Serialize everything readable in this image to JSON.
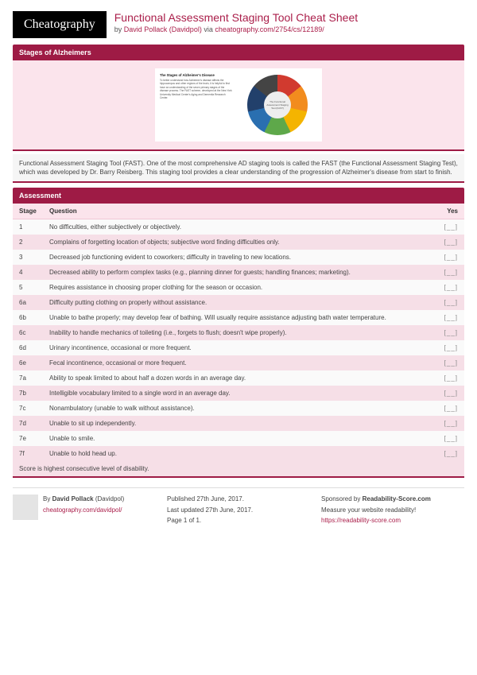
{
  "header": {
    "logo": "Cheatography",
    "title": "Functional Assessment Staging Tool Cheat Sheet",
    "by_label": "by",
    "author": "David Pollack (Davidpol)",
    "via_label": "via",
    "source_url": "cheatography.com/2754/cs/12189/"
  },
  "section_stages_title": "Stages of Alzheimers",
  "illus": {
    "title": "The Stages of Alzheimer's Disease",
    "body": "To better understand how Alzheimer's disease affects the hippocampus and other regions of the brain, it is helpful to first have an understanding of the seven primary stages of the disease process. The FAST scheme, developed at the New York University Medical Center's Aging and Dementia Research Center.",
    "center": "The Functional Assessment Staging Test (FAST)"
  },
  "description": "Functional Assessment Staging Tool (FAST). One of the most comprehensive AD staging tools is called the FAST (the Functional Assessment Staging Test), which was developed by Dr. Barry Reisberg. This staging tool provides a clear understanding of the progression of Alzheimer's disease from start to finish.",
  "assessment": {
    "title": "Assessment",
    "columns": {
      "stage": "Stage",
      "question": "Question",
      "yes": "Yes"
    },
    "rows": [
      {
        "stage": "1",
        "q": "No difficulties, either subjectively or objectively."
      },
      {
        "stage": "2",
        "q": "Complains of forgetting location of objects; subjective word finding difficulties only."
      },
      {
        "stage": "3",
        "q": "Decreased job functioning evident to coworkers; difficulty in traveling to new locations."
      },
      {
        "stage": "4",
        "q": "Decreased ability to perform complex tasks (e.g., planning dinner for guests; handling finances; marketing)."
      },
      {
        "stage": "5",
        "q": "Requires assistance in choosing proper clothing for the season or occasion."
      },
      {
        "stage": "6a",
        "q": "Difficulty putting clothing on properly without assistance."
      },
      {
        "stage": "6b",
        "q": "Unable to bathe properly; may develop fear of bathing. Will usually require assistance adjusting bath water temperature."
      },
      {
        "stage": "6c",
        "q": "Inability to handle mechanics of toileting (i.e., forgets to flush; doesn't wipe properly)."
      },
      {
        "stage": "6d",
        "q": "Urinary incontinence, occasional or more frequent."
      },
      {
        "stage": "6e",
        "q": "Fecal incontinence, occasional or more frequent."
      },
      {
        "stage": "7a",
        "q": "Ability to speak limited to about half a dozen words in an average day."
      },
      {
        "stage": "7b",
        "q": "Intelligible vocabulary limited to a single word in an average day."
      },
      {
        "stage": "7c",
        "q": "Nonambulatory (unable to walk without assistance)."
      },
      {
        "stage": "7d",
        "q": "Unable to sit up independently."
      },
      {
        "stage": "7e",
        "q": "Unable to smile."
      },
      {
        "stage": "7f",
        "q": "Unable to hold head up."
      }
    ],
    "yes_marker": "[__]",
    "footer_note": "Score is highest consecutive level of disability."
  },
  "footer": {
    "author_block": {
      "by": "By",
      "name": "David Pollack",
      "handle": "(Davidpol)",
      "url": "cheatography.com/davidpol/"
    },
    "meta": {
      "published": "Published 27th June, 2017.",
      "updated": "Last updated 27th June, 2017.",
      "page": "Page 1 of 1."
    },
    "sponsor": {
      "label": "Sponsored by",
      "name": "Readability-Score.com",
      "tag": "Measure your website readability!",
      "url": "https://readability-score.com"
    }
  }
}
